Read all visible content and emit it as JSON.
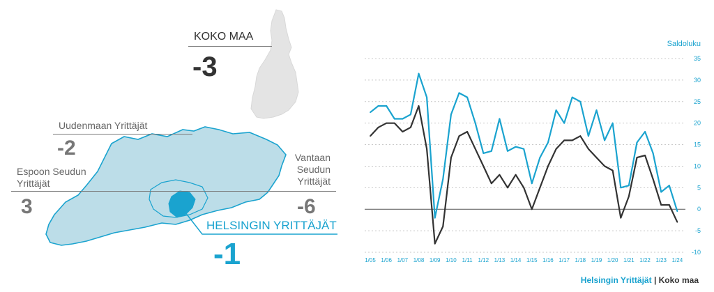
{
  "colors": {
    "accent": "#1aa3cf",
    "dark": "#333333",
    "region_fill": "#bcdde8",
    "finland_fill": "#e4e4e4"
  },
  "map_panel": {
    "national": {
      "label": "KOKO MAA",
      "value": "-3"
    },
    "uusimaa": {
      "label": "Uudenmaan Yrittäjät",
      "value": "-2"
    },
    "espoo": {
      "label_line1": "Espoon Seudun",
      "label_line2": "Yrittäjät",
      "value": "3"
    },
    "vantaa": {
      "label_line1": "Vantaan",
      "label_line2": "Seudun",
      "label_line3": "Yrittäjät",
      "value": "-6"
    },
    "helsinki": {
      "label": "HELSINGIN YRITTÄJÄT",
      "value": "-1"
    }
  },
  "legend": {
    "series1": "Helsingin Yrittäjät",
    "separator": "|",
    "series2": "Koko maa"
  },
  "chart_data": {
    "type": "line",
    "ylabel": "Saldoluku",
    "ylim": [
      -10,
      35
    ],
    "yticks": [
      -10,
      -5,
      0,
      5,
      10,
      15,
      20,
      25,
      30,
      35
    ],
    "grid": "dashed horizontal",
    "x_tick_labels": [
      "1/05",
      "1/06",
      "1/07",
      "1/08",
      "1/09",
      "1/10",
      "1/11",
      "1/12",
      "1/13",
      "1/14",
      "1/15",
      "1/16",
      "1/17",
      "1/18",
      "1/19",
      "1/20",
      "1/21",
      "1/22",
      "1/23",
      "1/24"
    ],
    "points_per_year": 2,
    "series": [
      {
        "name": "Helsingin Yrittäjät",
        "color": "#1aa3cf",
        "values": [
          22.5,
          24,
          24,
          21,
          21,
          22,
          31.5,
          26,
          -2,
          7,
          22,
          27,
          26,
          20,
          13,
          13.5,
          21,
          13.5,
          14.5,
          14,
          6,
          12,
          15.5,
          23,
          20,
          26,
          25,
          17,
          23,
          16,
          20,
          5,
          5.5,
          15.5,
          18,
          13,
          4,
          5.5,
          -0.5
        ]
      },
      {
        "name": "Koko maa",
        "color": "#333333",
        "values": [
          17,
          19,
          20,
          20,
          18,
          19,
          24,
          14,
          -8,
          -4,
          12,
          17,
          18,
          14,
          10,
          6,
          8,
          5,
          8,
          5,
          0,
          5,
          10,
          14,
          16,
          16,
          17,
          14,
          12,
          10,
          9,
          -2,
          3,
          12,
          12.5,
          7,
          1,
          1,
          -3
        ]
      }
    ]
  }
}
